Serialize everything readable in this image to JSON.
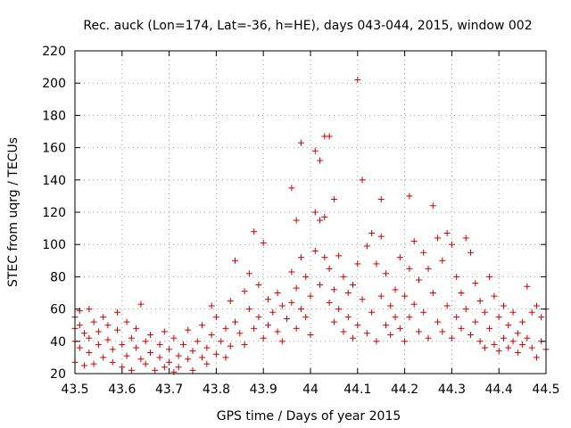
{
  "chart_data": {
    "type": "scatter",
    "title": "Rec. auck (Lon=174, Lat=-36, h=HE), days 043-044, 2015, window 002",
    "xlabel": "GPS time / Days of year 2015",
    "ylabel": "STEC from uqrg / TECUs",
    "xlim": [
      43.5,
      44.5
    ],
    "ylim": [
      20,
      220
    ],
    "xticks": [
      "43.5",
      "43.6",
      "43.7",
      "43.8",
      "43.9",
      "44",
      "44.1",
      "44.2",
      "44.3",
      "44.4",
      "44.5"
    ],
    "yticks": [
      "20",
      "40",
      "60",
      "80",
      "100",
      "120",
      "140",
      "160",
      "180",
      "200",
      "220"
    ],
    "grid": true,
    "marker": "plus",
    "color": "#cc0000",
    "points": [
      [
        43.5,
        40
      ],
      [
        43.5,
        48
      ],
      [
        43.5,
        55
      ],
      [
        43.5,
        27
      ],
      [
        43.51,
        59
      ],
      [
        43.51,
        50
      ],
      [
        43.51,
        36
      ],
      [
        43.52,
        25
      ],
      [
        43.52,
        45
      ],
      [
        43.53,
        60
      ],
      [
        43.53,
        42
      ],
      [
        43.53,
        33
      ],
      [
        43.54,
        52
      ],
      [
        43.54,
        26
      ],
      [
        43.55,
        46
      ],
      [
        43.55,
        38
      ],
      [
        43.56,
        55
      ],
      [
        43.56,
        30
      ],
      [
        43.57,
        41
      ],
      [
        43.57,
        50
      ],
      [
        43.58,
        27
      ],
      [
        43.58,
        35
      ],
      [
        43.59,
        58
      ],
      [
        43.59,
        47
      ],
      [
        43.6,
        38
      ],
      [
        43.6,
        24
      ],
      [
        43.61,
        52
      ],
      [
        43.61,
        31
      ],
      [
        43.62,
        42
      ],
      [
        43.62,
        22
      ],
      [
        43.63,
        36
      ],
      [
        43.63,
        48
      ],
      [
        43.64,
        29
      ],
      [
        43.64,
        63
      ],
      [
        43.65,
        40
      ],
      [
        43.65,
        26
      ],
      [
        43.66,
        33
      ],
      [
        43.66,
        44
      ],
      [
        43.67,
        22
      ],
      [
        43.68,
        38
      ],
      [
        43.68,
        30
      ],
      [
        43.69,
        24
      ],
      [
        43.69,
        46
      ],
      [
        43.7,
        27
      ],
      [
        43.7,
        35
      ],
      [
        43.71,
        21
      ],
      [
        43.71,
        42
      ],
      [
        43.72,
        31
      ],
      [
        43.72,
        24
      ],
      [
        43.73,
        38
      ],
      [
        43.74,
        29
      ],
      [
        43.74,
        47
      ],
      [
        43.75,
        34
      ],
      [
        43.75,
        22
      ],
      [
        43.76,
        40
      ],
      [
        43.77,
        30
      ],
      [
        43.77,
        50
      ],
      [
        43.78,
        36
      ],
      [
        43.78,
        26
      ],
      [
        43.79,
        62
      ],
      [
        43.79,
        44
      ],
      [
        43.8,
        32
      ],
      [
        43.8,
        55
      ],
      [
        43.81,
        40
      ],
      [
        43.82,
        48
      ],
      [
        43.82,
        30
      ],
      [
        43.83,
        65
      ],
      [
        43.83,
        37
      ],
      [
        43.84,
        90
      ],
      [
        43.84,
        52
      ],
      [
        43.85,
        45
      ],
      [
        43.86,
        71
      ],
      [
        43.86,
        38
      ],
      [
        43.87,
        60
      ],
      [
        43.87,
        82
      ],
      [
        43.88,
        108
      ],
      [
        43.88,
        48
      ],
      [
        43.89,
        75
      ],
      [
        43.89,
        55
      ],
      [
        43.9,
        42
      ],
      [
        43.9,
        101
      ],
      [
        43.91,
        66
      ],
      [
        43.91,
        50
      ],
      [
        43.92,
        58
      ],
      [
        43.93,
        46
      ],
      [
        43.93,
        70
      ],
      [
        43.94,
        62
      ],
      [
        43.94,
        40
      ],
      [
        43.95,
        54
      ],
      [
        43.96,
        83
      ],
      [
        43.96,
        135
      ],
      [
        43.96,
        64
      ],
      [
        43.97,
        115
      ],
      [
        43.97,
        73
      ],
      [
        43.97,
        48
      ],
      [
        43.98,
        92
      ],
      [
        43.98,
        163
      ],
      [
        43.98,
        60
      ],
      [
        43.99,
        80
      ],
      [
        43.99,
        55
      ],
      [
        44.0,
        68
      ],
      [
        44.0,
        44
      ],
      [
        44.01,
        158
      ],
      [
        44.01,
        120
      ],
      [
        44.01,
        96
      ],
      [
        44.02,
        152
      ],
      [
        44.02,
        115
      ],
      [
        44.02,
        75
      ],
      [
        44.03,
        167
      ],
      [
        44.03,
        117
      ],
      [
        44.03,
        92
      ],
      [
        44.04,
        167
      ],
      [
        44.04,
        85
      ],
      [
        44.04,
        64
      ],
      [
        44.05,
        128
      ],
      [
        44.05,
        72
      ],
      [
        44.05,
        52
      ],
      [
        44.06,
        93
      ],
      [
        44.06,
        60
      ],
      [
        44.07,
        80
      ],
      [
        44.07,
        46
      ],
      [
        44.08,
        70
      ],
      [
        44.08,
        55
      ],
      [
        44.09,
        75
      ],
      [
        44.09,
        42
      ],
      [
        44.1,
        202
      ],
      [
        44.1,
        88
      ],
      [
        44.1,
        50
      ],
      [
        44.11,
        140
      ],
      [
        44.11,
        66
      ],
      [
        44.12,
        99
      ],
      [
        44.12,
        45
      ],
      [
        44.13,
        107
      ],
      [
        44.13,
        58
      ],
      [
        44.14,
        88
      ],
      [
        44.14,
        40
      ],
      [
        44.15,
        128
      ],
      [
        44.15,
        105
      ],
      [
        44.15,
        68
      ],
      [
        44.16,
        82
      ],
      [
        44.16,
        50
      ],
      [
        44.17,
        62
      ],
      [
        44.17,
        44
      ],
      [
        44.18,
        72
      ],
      [
        44.18,
        55
      ],
      [
        44.19,
        92
      ],
      [
        44.19,
        48
      ],
      [
        44.2,
        68
      ],
      [
        44.2,
        40
      ],
      [
        44.21,
        130
      ],
      [
        44.21,
        85
      ],
      [
        44.21,
        55
      ],
      [
        44.22,
        102
      ],
      [
        44.22,
        63
      ],
      [
        44.23,
        78
      ],
      [
        44.23,
        46
      ],
      [
        44.24,
        95
      ],
      [
        44.24,
        58
      ],
      [
        44.25,
        85
      ],
      [
        44.25,
        42
      ],
      [
        44.26,
        124
      ],
      [
        44.26,
        70
      ],
      [
        44.27,
        104
      ],
      [
        44.27,
        52
      ],
      [
        44.28,
        90
      ],
      [
        44.28,
        46
      ],
      [
        44.29,
        107
      ],
      [
        44.29,
        62
      ],
      [
        44.3,
        100
      ],
      [
        44.3,
        42
      ],
      [
        44.31,
        80
      ],
      [
        44.31,
        55
      ],
      [
        44.32,
        70
      ],
      [
        44.32,
        48
      ],
      [
        44.33,
        104
      ],
      [
        44.33,
        60
      ],
      [
        44.34,
        95
      ],
      [
        44.34,
        44
      ],
      [
        44.35,
        76
      ],
      [
        44.35,
        52
      ],
      [
        44.36,
        65
      ],
      [
        44.36,
        40
      ],
      [
        44.37,
        58
      ],
      [
        44.37,
        36
      ],
      [
        44.38,
        80
      ],
      [
        44.38,
        48
      ],
      [
        44.39,
        68
      ],
      [
        44.39,
        38
      ],
      [
        44.4,
        55
      ],
      [
        44.4,
        34
      ],
      [
        44.41,
        62
      ],
      [
        44.41,
        42
      ],
      [
        44.42,
        50
      ],
      [
        44.42,
        36
      ],
      [
        44.43,
        58
      ],
      [
        44.43,
        40
      ],
      [
        44.44,
        45
      ],
      [
        44.44,
        33
      ],
      [
        44.45,
        52
      ],
      [
        44.45,
        38
      ],
      [
        44.46,
        74
      ],
      [
        44.46,
        42
      ],
      [
        44.47,
        58
      ],
      [
        44.47,
        36
      ],
      [
        44.48,
        62
      ],
      [
        44.48,
        30
      ],
      [
        44.49,
        55
      ],
      [
        44.49,
        40
      ],
      [
        44.5,
        60
      ],
      [
        44.5,
        35
      ]
    ]
  }
}
